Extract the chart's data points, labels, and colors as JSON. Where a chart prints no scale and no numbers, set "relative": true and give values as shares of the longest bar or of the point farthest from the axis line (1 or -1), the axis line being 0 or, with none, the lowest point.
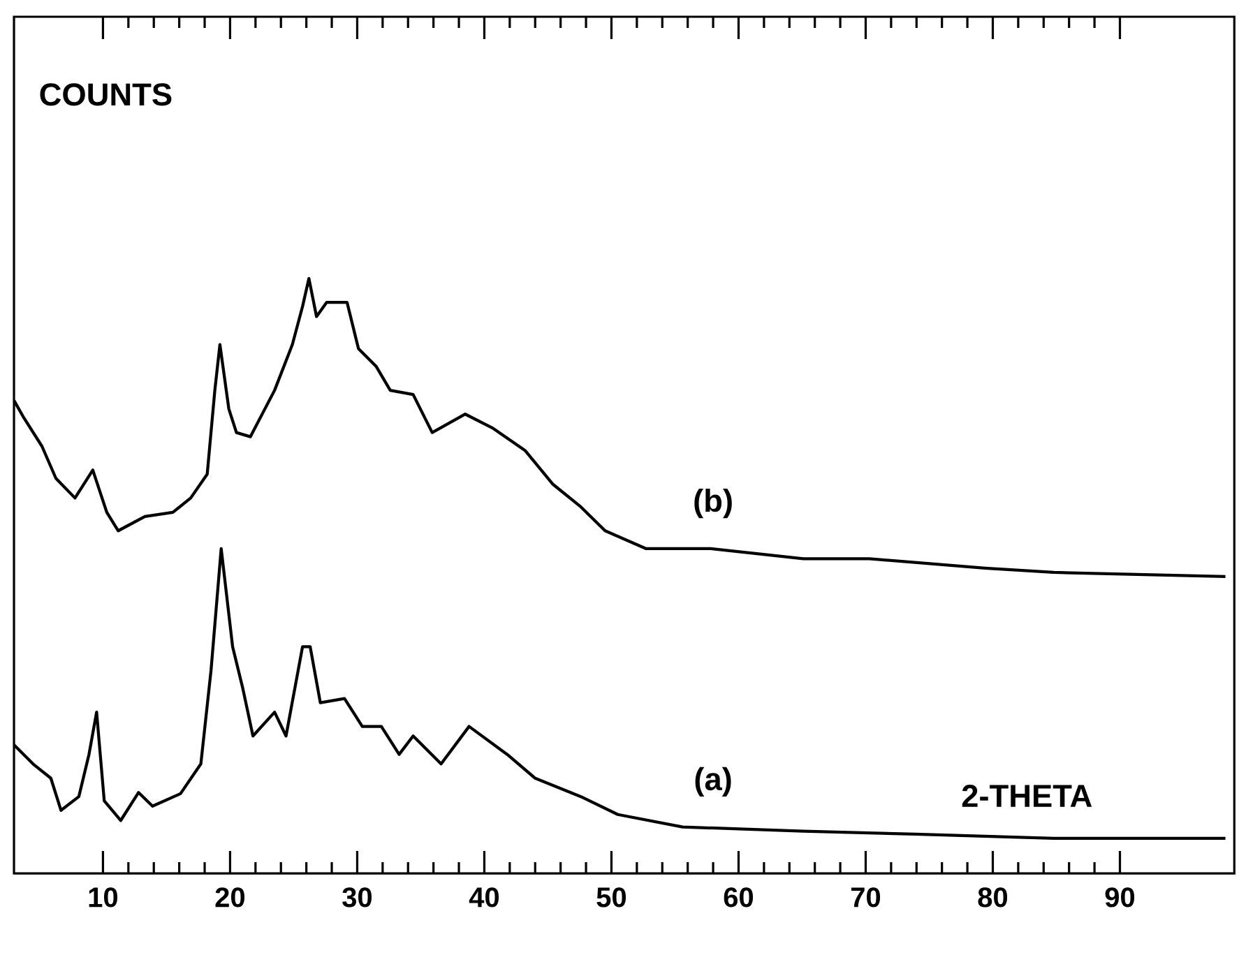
{
  "chart_data": {
    "type": "line",
    "xlabel": "2-THETA",
    "annotations": [
      "COUNTS"
    ],
    "relative": true,
    "xlim": [
      3,
      99
    ],
    "xticks": [
      10,
      20,
      30,
      40,
      50,
      60,
      70,
      80,
      90
    ],
    "grid": false,
    "legend": false,
    "marker": "none",
    "series": [
      {
        "name": "(b)",
        "color": "#000000",
        "x": [
          3.0,
          3.8,
          5.2,
          6.3,
          7.8,
          9.2,
          10.3,
          11.2,
          13.3,
          15.5,
          16.9,
          18.2,
          18.8,
          19.2,
          19.9,
          20.5,
          21.6,
          23.5,
          24.9,
          25.7,
          26.2,
          26.8,
          27.6,
          29.2,
          30.1,
          31.5,
          32.6,
          34.4,
          35.9,
          38.5,
          40.7,
          43.2,
          45.4,
          47.6,
          49.5,
          52.7,
          57.8,
          65.1,
          70.3,
          79.4,
          84.8,
          98.3
        ],
        "values": [
          0.795,
          0.765,
          0.718,
          0.664,
          0.631,
          0.678,
          0.607,
          0.576,
          0.6,
          0.607,
          0.631,
          0.671,
          0.812,
          0.889,
          0.781,
          0.741,
          0.734,
          0.812,
          0.889,
          0.953,
          1.0,
          0.936,
          0.96,
          0.96,
          0.882,
          0.852,
          0.812,
          0.805,
          0.741,
          0.772,
          0.748,
          0.711,
          0.654,
          0.616,
          0.576,
          0.546,
          0.546,
          0.529,
          0.529,
          0.513,
          0.506,
          0.499
        ]
      },
      {
        "name": "(a)",
        "color": "#000000",
        "x": [
          3.0,
          4.5,
          5.9,
          6.7,
          8.1,
          8.9,
          9.5,
          10.1,
          11.4,
          12.8,
          13.9,
          16.1,
          17.7,
          18.5,
          19.3,
          20.2,
          21.0,
          21.8,
          23.5,
          24.4,
          25.7,
          26.3,
          27.1,
          29.0,
          30.4,
          31.9,
          33.3,
          34.4,
          36.6,
          38.8,
          41.8,
          44.0,
          47.6,
          50.5,
          55.6,
          65.1,
          73.9,
          84.8,
          98.3
        ],
        "values": [
          0.216,
          0.184,
          0.16,
          0.106,
          0.129,
          0.2,
          0.271,
          0.122,
          0.089,
          0.136,
          0.113,
          0.134,
          0.184,
          0.341,
          0.546,
          0.381,
          0.311,
          0.231,
          0.271,
          0.231,
          0.381,
          0.381,
          0.287,
          0.294,
          0.247,
          0.247,
          0.2,
          0.231,
          0.184,
          0.247,
          0.2,
          0.16,
          0.129,
          0.099,
          0.078,
          0.071,
          0.066,
          0.059,
          0.059
        ]
      }
    ]
  }
}
